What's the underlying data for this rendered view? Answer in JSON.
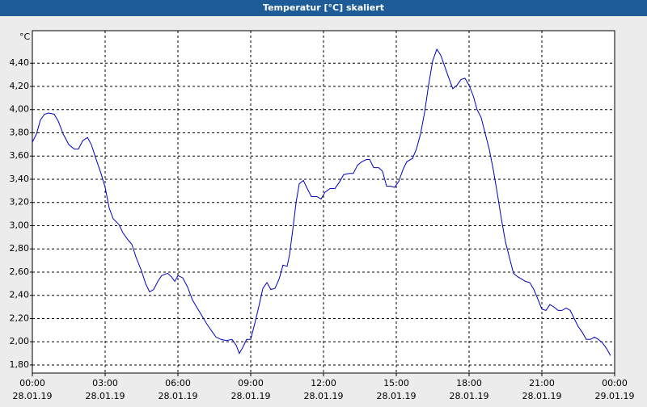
{
  "chart_data": {
    "type": "line",
    "title": "Temperatur [°C] skaliert",
    "ylabel": "°C",
    "color": "#0000c0",
    "grid": true,
    "xlim": [
      0,
      24
    ],
    "ylim": [
      1.73,
      4.68
    ],
    "xticks": [
      {
        "value": 0,
        "label": [
          "00:00",
          "28.01.19"
        ]
      },
      {
        "value": 3,
        "label": [
          "03:00",
          "28.01.19"
        ]
      },
      {
        "value": 6,
        "label": [
          "06:00",
          "28.01.19"
        ]
      },
      {
        "value": 9,
        "label": [
          "09:00",
          "28.01.19"
        ]
      },
      {
        "value": 12,
        "label": [
          "12:00",
          "28.01.19"
        ]
      },
      {
        "value": 15,
        "label": [
          "15:00",
          "28.01.19"
        ]
      },
      {
        "value": 18,
        "label": [
          "18:00",
          "28.01.19"
        ]
      },
      {
        "value": 21,
        "label": [
          "21:00",
          "28.01.19"
        ]
      },
      {
        "value": 24,
        "label": [
          "00:00",
          "29.01.19"
        ]
      }
    ],
    "yticks": [
      {
        "value": 1.8,
        "label": "1,80"
      },
      {
        "value": 2.0,
        "label": "2,00"
      },
      {
        "value": 2.2,
        "label": "2,20"
      },
      {
        "value": 2.4,
        "label": "2,40"
      },
      {
        "value": 2.6,
        "label": "2,60"
      },
      {
        "value": 2.8,
        "label": "2,80"
      },
      {
        "value": 3.0,
        "label": "3,00"
      },
      {
        "value": 3.2,
        "label": "3,20"
      },
      {
        "value": 3.4,
        "label": "3,40"
      },
      {
        "value": 3.6,
        "label": "3,60"
      },
      {
        "value": 3.8,
        "label": "3,80"
      },
      {
        "value": 4.0,
        "label": "4,00"
      },
      {
        "value": 4.2,
        "label": "4,20"
      },
      {
        "value": 4.4,
        "label": "4,40"
      }
    ],
    "x": [
      0,
      0.17,
      0.33,
      0.5,
      0.67,
      0.9,
      1.07,
      1.27,
      1.5,
      1.73,
      1.9,
      2.07,
      2.27,
      2.43,
      2.6,
      2.83,
      3,
      3.17,
      3.33,
      3.57,
      3.73,
      3.93,
      4.1,
      4.27,
      4.5,
      4.67,
      4.83,
      5,
      5.17,
      5.33,
      5.57,
      5.73,
      5.87,
      6,
      6.2,
      6.4,
      6.6,
      6.77,
      7,
      7.2,
      7.4,
      7.57,
      7.77,
      8,
      8.23,
      8.4,
      8.53,
      8.67,
      8.83,
      9,
      9.17,
      9.33,
      9.5,
      9.67,
      9.83,
      10,
      10.17,
      10.33,
      10.5,
      10.6,
      10.73,
      10.87,
      11,
      11.17,
      11.33,
      11.5,
      11.73,
      11.9,
      12.07,
      12.27,
      12.47,
      12.67,
      12.83,
      13.07,
      13.23,
      13.4,
      13.57,
      13.77,
      13.9,
      14.07,
      14.27,
      14.43,
      14.6,
      14.77,
      14.93,
      15.1,
      15.27,
      15.43,
      15.67,
      15.83,
      16,
      16.17,
      16.33,
      16.5,
      16.67,
      16.83,
      17,
      17.17,
      17.33,
      17.5,
      17.67,
      17.83,
      18,
      18.17,
      18.33,
      18.5,
      18.67,
      18.83,
      19,
      19.17,
      19.33,
      19.5,
      19.67,
      19.83,
      20,
      20.17,
      20.33,
      20.5,
      20.67,
      20.83,
      21,
      21.17,
      21.33,
      21.5,
      21.67,
      21.83,
      22,
      22.17,
      22.33,
      22.5,
      22.67,
      22.83,
      23,
      23.17,
      23.33,
      23.5,
      23.67,
      23.83
    ],
    "values": [
      3.72,
      3.79,
      3.91,
      3.96,
      3.97,
      3.96,
      3.9,
      3.79,
      3.7,
      3.66,
      3.66,
      3.73,
      3.76,
      3.7,
      3.59,
      3.45,
      3.33,
      3.15,
      3.06,
      3.01,
      2.94,
      2.88,
      2.84,
      2.73,
      2.61,
      2.5,
      2.43,
      2.45,
      2.52,
      2.57,
      2.59,
      2.56,
      2.52,
      2.57,
      2.55,
      2.47,
      2.36,
      2.3,
      2.22,
      2.15,
      2.09,
      2.04,
      2.02,
      2.01,
      2.02,
      1.97,
      1.9,
      1.95,
      2.02,
      2.02,
      2.16,
      2.3,
      2.46,
      2.51,
      2.45,
      2.46,
      2.54,
      2.66,
      2.65,
      2.75,
      2.96,
      3.2,
      3.36,
      3.39,
      3.32,
      3.25,
      3.25,
      3.23,
      3.29,
      3.32,
      3.32,
      3.38,
      3.44,
      3.45,
      3.45,
      3.52,
      3.55,
      3.57,
      3.57,
      3.5,
      3.5,
      3.47,
      3.34,
      3.34,
      3.33,
      3.38,
      3.48,
      3.55,
      3.58,
      3.66,
      3.79,
      3.98,
      4.21,
      4.42,
      4.52,
      4.47,
      4.37,
      4.27,
      4.18,
      4.21,
      4.26,
      4.27,
      4.21,
      4.12,
      4,
      3.93,
      3.79,
      3.66,
      3.48,
      3.27,
      3.06,
      2.86,
      2.72,
      2.59,
      2.56,
      2.54,
      2.52,
      2.51,
      2.45,
      2.37,
      2.28,
      2.27,
      2.32,
      2.3,
      2.27,
      2.27,
      2.29,
      2.27,
      2.2,
      2.13,
      2.08,
      2.02,
      2.02,
      2.04,
      2.02,
      1.99,
      1.94,
      1.88
    ]
  }
}
